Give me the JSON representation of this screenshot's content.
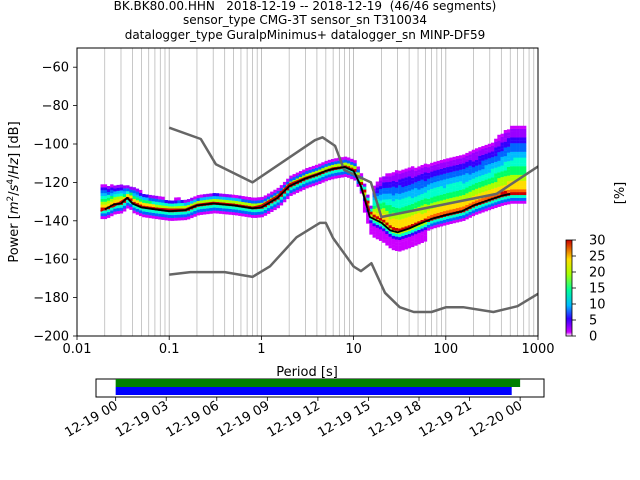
{
  "figure": {
    "title_lines": [
      "BK.BK80.00.HHN   2018-12-19 -- 2018-12-19  (46/46 segments)",
      "sensor_type CMG-3T sensor_sn T310034",
      "datalogger_type GuralpMinimus+ datalogger_sn MINP-DF59"
    ]
  },
  "colorbar": {
    "label": "[%]",
    "ticks": [
      "0",
      "5",
      "10",
      "15",
      "20",
      "25",
      "30"
    ],
    "range": [
      0,
      30
    ]
  },
  "chart_data": [
    {
      "type": "heatmap",
      "title": "BK.BK80.00.HHN   2018-12-19 -- 2018-12-19  (46/46 segments)",
      "xlabel": "Period [s]",
      "ylabel": "Power [m2/s4/Hz] [dB]",
      "x_scale": "log",
      "xlim": [
        0.01,
        1000
      ],
      "ylim": [
        -200,
        -50
      ],
      "x_tick_labels": [
        "0.01",
        "0.1",
        "1",
        "10",
        "100",
        "1000"
      ],
      "x_ticks": [
        0.01,
        0.1,
        1,
        10,
        100,
        1000
      ],
      "y_tick_labels": [
        "−60",
        "−80",
        "−100",
        "−120",
        "−140",
        "−160",
        "−180",
        "−200"
      ],
      "y_ticks": [
        -60,
        -80,
        -100,
        -120,
        -140,
        -160,
        -180,
        -200
      ],
      "grid": "x-major-and-minor",
      "series": [
        {
          "kind": "noise-model-high",
          "color": "#666666",
          "x": [
            0.1,
            0.22,
            0.32,
            0.8,
            3.8,
            4.6,
            6.3,
            7.9,
            15.4,
            20,
            354.8,
            10000
          ],
          "y": [
            -91.5,
            -97.4,
            -110.5,
            -120,
            -98,
            -96.5,
            -101,
            -113.5,
            -120,
            -138,
            -126,
            -80
          ]
        },
        {
          "kind": "noise-model-low",
          "color": "#666666",
          "x": [
            0.1,
            0.17,
            0.4,
            0.8,
            1.24,
            2.4,
            4.3,
            5,
            6,
            10,
            12,
            15.6,
            21.9,
            31.6,
            45,
            70,
            101,
            154,
            328,
            600,
            1000
          ],
          "y": [
            -168,
            -166.7,
            -166.7,
            -169.2,
            -163.7,
            -148.6,
            -141.1,
            -141.1,
            -149,
            -163.8,
            -166.2,
            -162.1,
            -177.5,
            -185,
            -187.5,
            -187.5,
            -185,
            -185,
            -187.5,
            -184.5,
            -178
          ]
        },
        {
          "kind": "mode",
          "color": "#000000",
          "x": [
            0.02,
            0.025,
            0.03,
            0.035,
            0.04,
            0.05,
            0.07,
            0.1,
            0.15,
            0.2,
            0.3,
            0.5,
            0.8,
            1,
            1.5,
            2,
            3,
            4,
            5,
            6,
            8,
            10,
            12,
            15,
            20,
            25,
            30,
            40,
            50,
            70,
            100,
            150,
            200,
            300,
            400,
            500
          ],
          "y": [
            -134,
            -131.5,
            -131,
            -128,
            -131,
            -133,
            -134,
            -135,
            -134.5,
            -132,
            -131,
            -132,
            -133.5,
            -133,
            -128,
            -122,
            -118,
            -116,
            -114,
            -113,
            -112,
            -114,
            -122,
            -138,
            -141,
            -145,
            -146,
            -144,
            -142,
            -139,
            -137,
            -135,
            -132,
            -129,
            -127,
            -126
          ]
        },
        {
          "kind": "mean",
          "color": "#cc0000",
          "x": [
            0.018,
            0.022,
            0.025,
            0.03,
            0.035,
            0.04,
            0.05,
            0.07,
            0.1,
            0.15,
            0.2,
            0.3,
            0.5,
            0.8,
            1,
            1.5,
            2,
            3,
            4,
            5,
            6,
            8,
            10,
            12,
            15
          ],
          "y": [
            -135,
            -133,
            -132.5,
            -130,
            -128,
            -131,
            -133,
            -133.5,
            -134,
            -134,
            -131.5,
            -130.5,
            -131.5,
            -133,
            -132,
            -127,
            -121,
            -117.5,
            -115.5,
            -114,
            -112.5,
            -112,
            -114,
            -122,
            -135
          ]
        },
        {
          "kind": "ppsd-envelope-upper",
          "color": "#cc00cc",
          "x": [
            0.03,
            0.04,
            0.05,
            0.07,
            0.1,
            0.12,
            0.15,
            0.2,
            0.3,
            0.5,
            15,
            20,
            30,
            50,
            70,
            100,
            150,
            200,
            300,
            500
          ],
          "y": [
            -122,
            -123,
            -126,
            -128,
            -130,
            -129,
            -130,
            -128,
            -126,
            -128,
            -124,
            -117,
            -114,
            -112,
            -110,
            -108,
            -106,
            -104,
            -100,
            -91
          ]
        }
      ]
    },
    {
      "type": "timeline",
      "x_tick_labels": [
        "12-19 00",
        "12-19 03",
        "12-19 06",
        "12-19 09",
        "12-19 12",
        "12-19 15",
        "12-19 18",
        "12-19 21",
        "12-20 00"
      ],
      "x_ticks": [
        "2018-12-19T00:00",
        "2018-12-19T03:00",
        "2018-12-19T06:00",
        "2018-12-19T09:00",
        "2018-12-19T12:00",
        "2018-12-19T15:00",
        "2018-12-19T18:00",
        "2018-12-19T21:00",
        "2018-12-20T00:00"
      ],
      "xlim": [
        "2018-12-18T22:50",
        "2018-12-20T01:25"
      ],
      "series": [
        {
          "name": "",
          "color": "#008000",
          "start": "2018-12-19T00:00",
          "end": "2018-12-20T00:00"
        },
        {
          "name": "",
          "color": "#0000ff",
          "start": "2018-12-19T00:00",
          "end": "2018-12-19T23:30"
        }
      ]
    }
  ]
}
